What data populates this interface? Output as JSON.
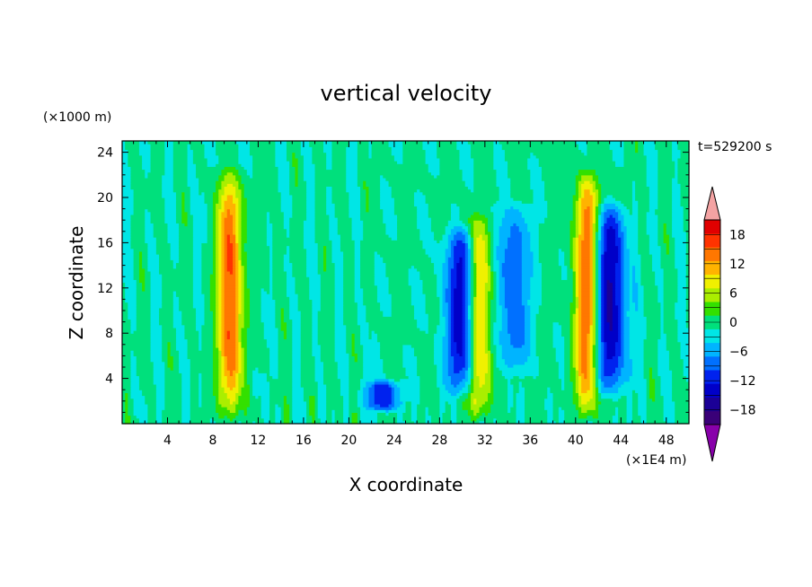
{
  "chart_data": {
    "type": "heatmap",
    "title": "vertical velocity",
    "xlabel": "X coordinate",
    "ylabel": "Z coordinate",
    "x_units": "(×1E4 m)",
    "y_units": "(×1000 m)",
    "time_label": "t=529200 s",
    "xlim": [
      0,
      50
    ],
    "ylim": [
      0,
      25
    ],
    "x_ticks": [
      4,
      8,
      12,
      16,
      20,
      24,
      28,
      32,
      36,
      40,
      44,
      48
    ],
    "y_ticks": [
      4,
      8,
      12,
      16,
      20,
      24
    ],
    "colorbar": {
      "levels": [
        -21,
        -18,
        -15,
        -12,
        -9,
        -6,
        -3,
        0,
        3,
        6,
        9,
        12,
        15,
        18,
        21
      ],
      "tick_values": [
        -18,
        -12,
        -6,
        0,
        6,
        12,
        18
      ],
      "tick_labels": [
        "−18",
        "−12",
        "−6",
        "0",
        "6",
        "12",
        "18"
      ],
      "colors": [
        "#3a0078",
        "#1b0096",
        "#0000c8",
        "#0022ee",
        "#0070ff",
        "#00b4ff",
        "#00e6e6",
        "#00e07c",
        "#33e000",
        "#aaee00",
        "#f0f000",
        "#ffb300",
        "#ff7700",
        "#ff3300",
        "#e10000"
      ],
      "under_color": "#8800aa",
      "over_color": "#f4a3a3"
    },
    "features": [
      {
        "kind": "updraft",
        "x_center": 9.5,
        "z_bottom": 0,
        "z_top": 23,
        "peak": 18
      },
      {
        "kind": "downdraft",
        "x_center": 30,
        "z_bottom": 2,
        "z_top": 18,
        "peak": -15
      },
      {
        "kind": "updraft",
        "x_center": 31.5,
        "z_bottom": 0,
        "z_top": 19,
        "peak": 15
      },
      {
        "kind": "downdraft",
        "x_center": 34.5,
        "z_bottom": 4,
        "z_top": 20,
        "peak": -9
      },
      {
        "kind": "updraft",
        "x_center": 41,
        "z_bottom": 0,
        "z_top": 23,
        "peak": 18
      },
      {
        "kind": "downdraft",
        "x_center": 43,
        "z_bottom": 2,
        "z_top": 20,
        "peak": -16
      },
      {
        "kind": "downdraft",
        "x_center": 23,
        "z_bottom": 1,
        "z_top": 4,
        "peak": -12
      }
    ]
  }
}
